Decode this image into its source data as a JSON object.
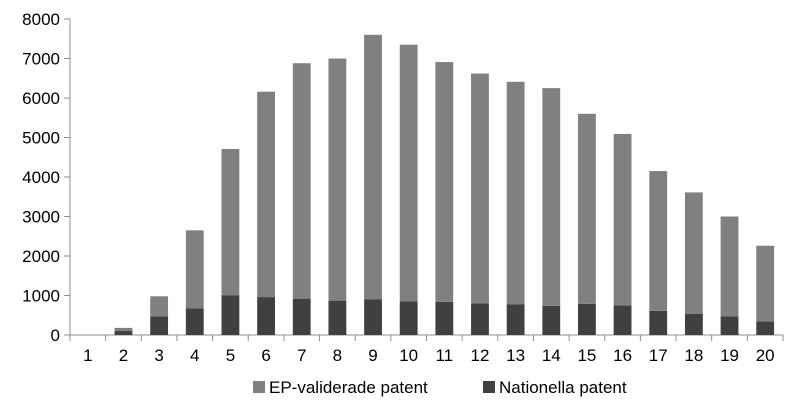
{
  "chart_data": {
    "type": "bar",
    "stacked": true,
    "categories": [
      "1",
      "2",
      "3",
      "4",
      "5",
      "6",
      "7",
      "8",
      "9",
      "10",
      "11",
      "12",
      "13",
      "14",
      "15",
      "16",
      "17",
      "18",
      "19",
      "20"
    ],
    "series": [
      {
        "name": "Nationella patent",
        "color": "#404040",
        "values": [
          0,
          100,
          470,
          670,
          1000,
          960,
          920,
          870,
          900,
          850,
          840,
          800,
          780,
          740,
          790,
          750,
          610,
          540,
          470,
          340
        ]
      },
      {
        "name": "EP-validerade patent",
        "color": "#808080",
        "values": [
          0,
          80,
          510,
          1980,
          3710,
          5200,
          5960,
          6130,
          6700,
          6500,
          6070,
          5820,
          5630,
          5510,
          4810,
          4340,
          3540,
          3070,
          2530,
          1920
        ]
      }
    ],
    "legend_order": [
      "EP-validerade patent",
      "Nationella patent"
    ],
    "y_ticks": [
      "0",
      "1000",
      "2000",
      "3000",
      "4000",
      "5000",
      "6000",
      "7000",
      "8000"
    ],
    "ylim": [
      0,
      8000
    ],
    "grid": false,
    "legend_position": "bottom",
    "title": "",
    "xlabel": "",
    "ylabel": ""
  }
}
